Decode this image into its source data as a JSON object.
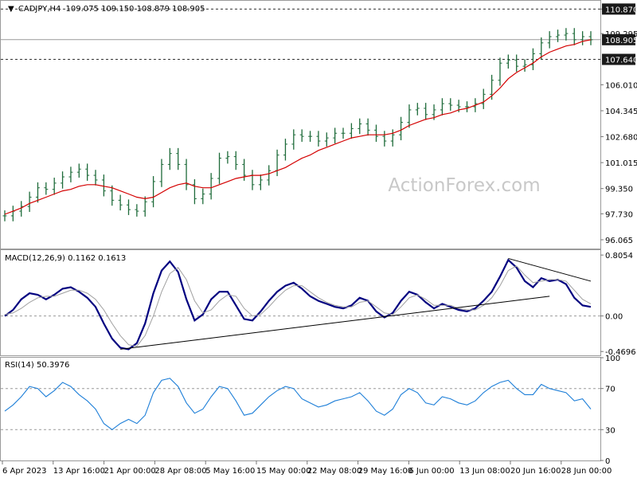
{
  "header": {
    "symbol": "CADJPY,H4",
    "ohlc": "109.075 109.150 108.879 108.905"
  },
  "watermark": "ActionForex.com",
  "colors": {
    "price": "#1e6b3a",
    "ema": "#d40000",
    "macd": "#000080",
    "signal": "#a0a0a0",
    "rsi": "#1e7fd8",
    "trendline": "#000000",
    "tag_bg": "#1a1a1a",
    "tag_text": "#ffffff"
  },
  "chart_data": [
    {
      "type": "line",
      "title": "",
      "ylim": [
        95.5,
        111.4
      ],
      "y_ticks": [
        "110.870",
        "109.295",
        "106.010",
        "104.345",
        "102.680",
        "101.015",
        "99.350",
        "97.730",
        "96.065"
      ],
      "price_tags": [
        {
          "label": "110.870",
          "value": 110.87,
          "style": "dashed"
        },
        {
          "label": "108.905",
          "value": 108.905,
          "style": "solid"
        },
        {
          "label": "107.640",
          "value": 107.64,
          "style": "dashed"
        }
      ],
      "series": [
        {
          "key": "price",
          "values": [
            97.6,
            97.9,
            98.2,
            98.8,
            99.4,
            99.3,
            99.7,
            100.1,
            100.4,
            100.6,
            100.2,
            99.9,
            99.2,
            98.6,
            98.3,
            98.0,
            97.9,
            98.5,
            99.8,
            100.9,
            101.6,
            100.9,
            99.6,
            98.7,
            99.0,
            100.0,
            101.3,
            101.4,
            100.9,
            100.2,
            99.6,
            99.9,
            100.5,
            101.5,
            102.2,
            102.8,
            102.7,
            102.7,
            102.4,
            102.6,
            102.9,
            102.9,
            103.2,
            103.5,
            103.1,
            102.7,
            102.4,
            102.8,
            103.6,
            104.4,
            104.5,
            104.1,
            104.4,
            104.8,
            104.7,
            104.6,
            104.6,
            104.8,
            105.4,
            106.3,
            107.4,
            107.6,
            107.2,
            107.3,
            108.0,
            108.7,
            109.1,
            109.2,
            109.3,
            108.9,
            109.1,
            108.9
          ],
          "ema_key": "ema",
          "ema_values": [
            97.7,
            97.9,
            98.1,
            98.4,
            98.6,
            98.8,
            99.0,
            99.2,
            99.3,
            99.5,
            99.6,
            99.6,
            99.5,
            99.4,
            99.2,
            99.0,
            98.8,
            98.7,
            98.8,
            99.1,
            99.4,
            99.6,
            99.7,
            99.5,
            99.4,
            99.4,
            99.6,
            99.8,
            100.0,
            100.1,
            100.2,
            100.2,
            100.3,
            100.5,
            100.7,
            101.0,
            101.3,
            101.5,
            101.8,
            102.0,
            102.2,
            102.4,
            102.6,
            102.7,
            102.8,
            102.8,
            102.8,
            102.9,
            103.1,
            103.4,
            103.6,
            103.8,
            103.9,
            104.1,
            104.2,
            104.4,
            104.5,
            104.7,
            104.9,
            105.3,
            105.8,
            106.4,
            106.8,
            107.1,
            107.4,
            107.8,
            108.1,
            108.3,
            108.5,
            108.6,
            108.8,
            108.9
          ]
        }
      ]
    },
    {
      "type": "line",
      "title": "MACD(12,26,9) 0.1162 0.1613",
      "ylim": [
        -0.52,
        0.87
      ],
      "y_ticks": [
        "0.8054",
        "0.00",
        "-0.4696"
      ],
      "zero_line": true,
      "series": [
        {
          "key": "macd",
          "values": [
            0.0,
            0.08,
            0.22,
            0.3,
            0.28,
            0.22,
            0.28,
            0.36,
            0.38,
            0.32,
            0.24,
            0.12,
            -0.1,
            -0.3,
            -0.42,
            -0.44,
            -0.36,
            -0.1,
            0.3,
            0.6,
            0.72,
            0.58,
            0.22,
            -0.06,
            0.02,
            0.22,
            0.32,
            0.32,
            0.14,
            -0.04,
            -0.06,
            0.06,
            0.2,
            0.32,
            0.4,
            0.44,
            0.36,
            0.26,
            0.2,
            0.16,
            0.12,
            0.1,
            0.14,
            0.24,
            0.2,
            0.06,
            -0.02,
            0.04,
            0.2,
            0.32,
            0.28,
            0.18,
            0.1,
            0.16,
            0.12,
            0.08,
            0.06,
            0.1,
            0.2,
            0.32,
            0.52,
            0.74,
            0.64,
            0.46,
            0.38,
            0.5,
            0.46,
            0.48,
            0.42,
            0.24,
            0.14,
            0.12
          ]
        },
        {
          "key": "signal",
          "values": [
            0.02,
            0.04,
            0.1,
            0.18,
            0.24,
            0.26,
            0.26,
            0.3,
            0.34,
            0.34,
            0.3,
            0.22,
            0.08,
            -0.1,
            -0.26,
            -0.38,
            -0.4,
            -0.26,
            0.0,
            0.32,
            0.56,
            0.64,
            0.48,
            0.2,
            0.04,
            0.08,
            0.2,
            0.28,
            0.26,
            0.1,
            0.0,
            0.02,
            0.12,
            0.24,
            0.34,
            0.4,
            0.4,
            0.32,
            0.24,
            0.18,
            0.14,
            0.12,
            0.12,
            0.18,
            0.2,
            0.12,
            0.04,
            0.02,
            0.12,
            0.24,
            0.28,
            0.22,
            0.14,
            0.14,
            0.14,
            0.1,
            0.08,
            0.08,
            0.14,
            0.24,
            0.4,
            0.6,
            0.66,
            0.54,
            0.44,
            0.46,
            0.48,
            0.48,
            0.46,
            0.34,
            0.22,
            0.16
          ]
        }
      ],
      "trendlines": [
        {
          "from_index": 14,
          "from_value": -0.44,
          "to_index": 66,
          "to_value": 0.26
        },
        {
          "from_index": 61,
          "from_value": 0.76,
          "to_index": 71,
          "to_value": 0.46
        }
      ]
    },
    {
      "type": "line",
      "title": "RSI(14) 50.3976",
      "ylim": [
        0,
        100
      ],
      "y_ticks": [
        "100",
        "70",
        "30",
        "0"
      ],
      "levels": [
        70,
        30
      ],
      "series": [
        {
          "key": "rsi",
          "values": [
            48,
            54,
            62,
            72,
            70,
            62,
            68,
            76,
            72,
            64,
            58,
            50,
            36,
            30,
            36,
            40,
            36,
            44,
            66,
            78,
            80,
            72,
            56,
            46,
            50,
            62,
            72,
            70,
            58,
            44,
            46,
            54,
            62,
            68,
            72,
            70,
            60,
            56,
            52,
            54,
            58,
            60,
            62,
            66,
            58,
            48,
            44,
            50,
            64,
            70,
            66,
            56,
            54,
            62,
            60,
            56,
            54,
            58,
            66,
            72,
            76,
            78,
            70,
            64,
            64,
            74,
            70,
            68,
            66,
            58,
            60,
            50
          ]
        }
      ]
    }
  ],
  "x_axis": {
    "labels": [
      "6 Apr 2023",
      "13 Apr 16:00",
      "21 Apr 00:00",
      "28 Apr 08:00",
      "5 May 16:00",
      "15 May 00:00",
      "22 May 08:00",
      "29 May 16:00",
      "6 Jun 00:00",
      "13 Jun 08:00",
      "20 Jun 16:00",
      "28 Jun 00:00"
    ]
  }
}
